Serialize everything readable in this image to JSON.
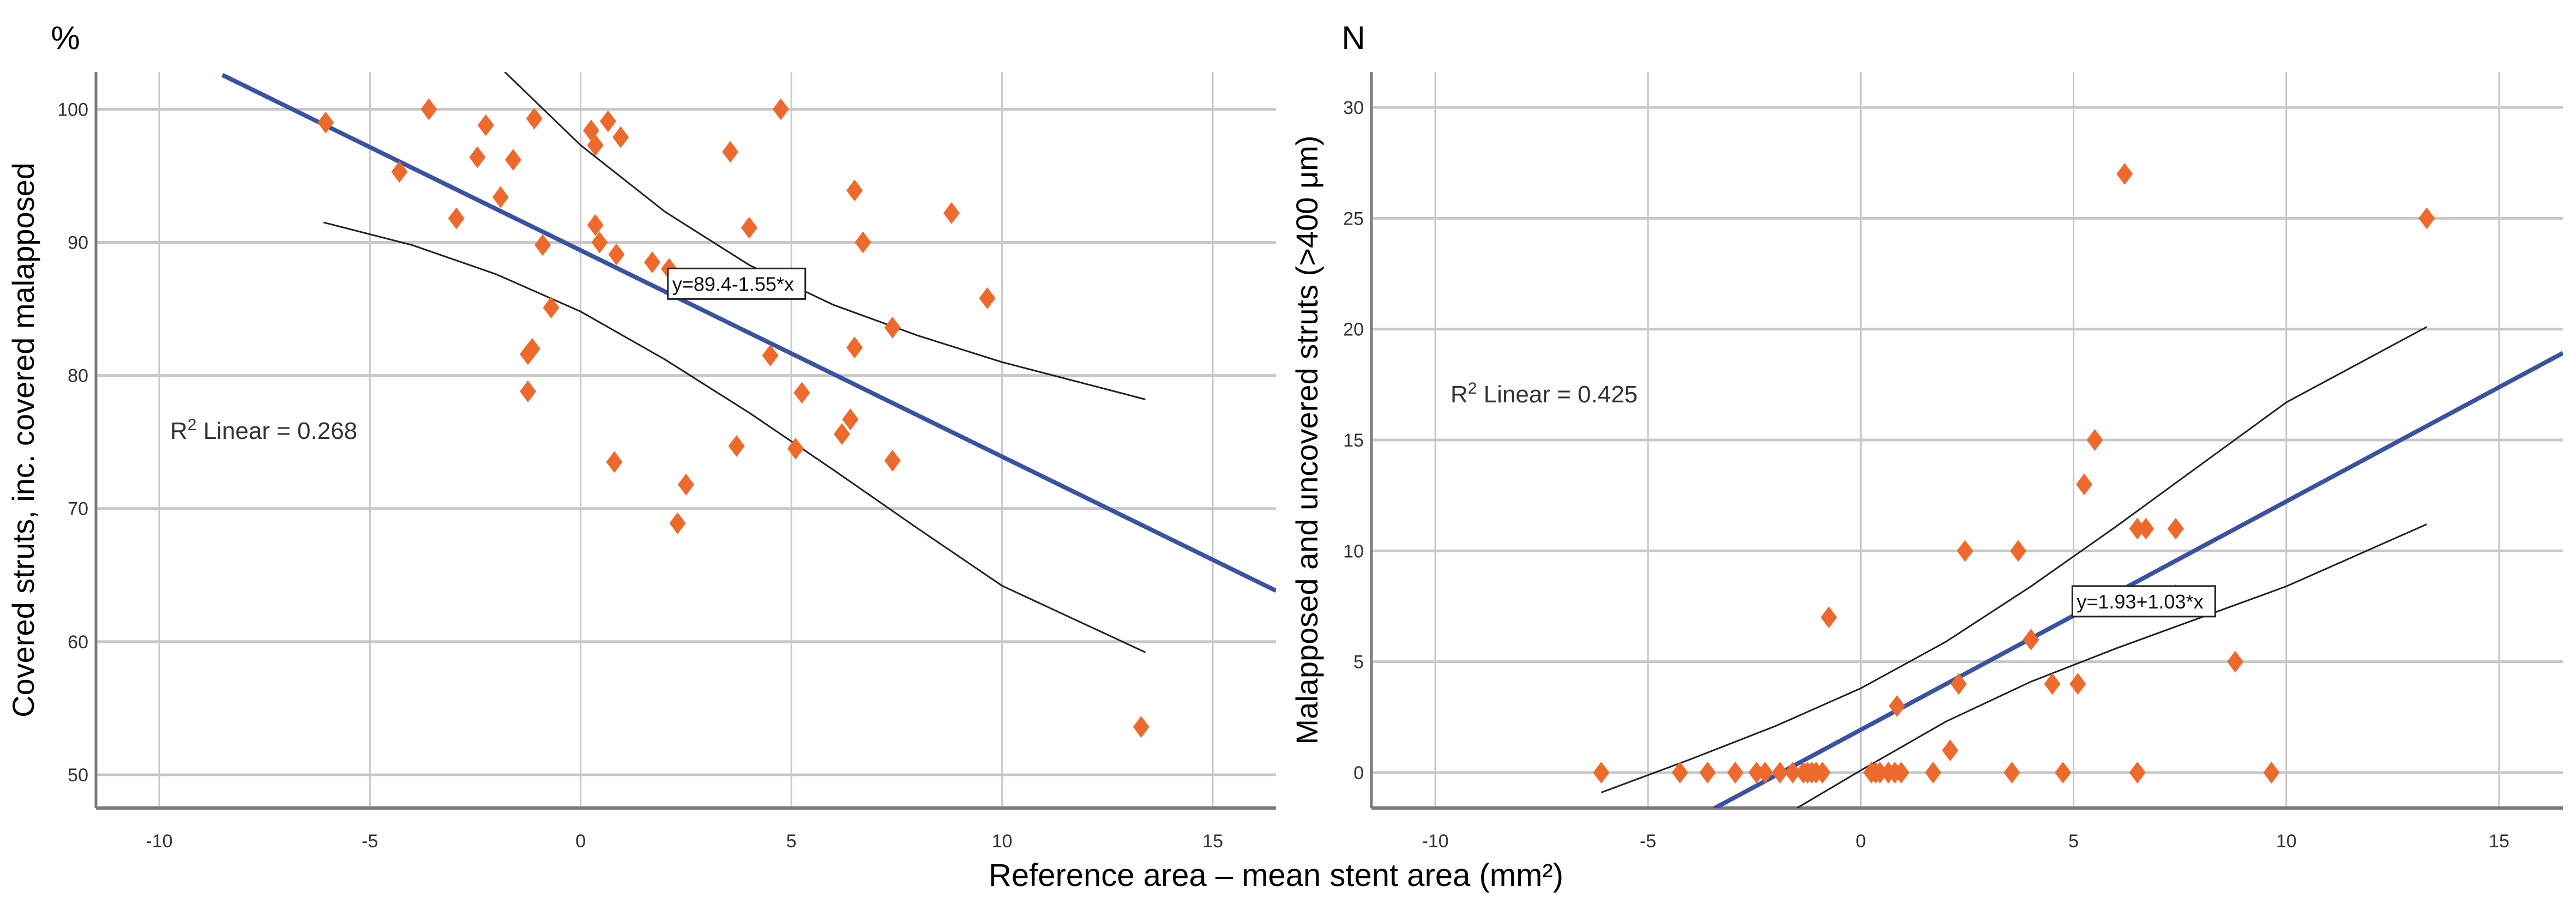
{
  "shared_xlabel": "Reference area – mean stent area (mm²)",
  "colors": {
    "point": "#ED6A2C",
    "fit": "#3A52A4",
    "ci": "#222222",
    "grid": "#C8C8C8",
    "axis": "#7A7A7A"
  },
  "chart_data": [
    {
      "type": "scatter",
      "id": "left",
      "unit_label": "%",
      "ylabel": "Covered struts, inc. covered malapposed",
      "xlabel": "Reference area – mean stent area (mm²)",
      "xlim": [
        -11.5,
        16.5
      ],
      "ylim": [
        47.5,
        102.8
      ],
      "xticks": [
        -10,
        -5,
        0,
        5,
        10,
        15
      ],
      "yticks": [
        50,
        60,
        70,
        80,
        90,
        100
      ],
      "grid": true,
      "r2_label": "R² Linear = 0.268",
      "r2_base": "R",
      "r2_sup": "2",
      "r2_rest": " Linear = 0.268",
      "equation": "y=89.4-1.55*x",
      "fit": {
        "intercept": 89.4,
        "slope": -1.55,
        "x_range": [
          -8.5,
          16.5
        ]
      },
      "ci_upper": [
        [
          -1.8,
          102.8
        ],
        [
          0,
          97.3
        ],
        [
          2,
          92.3
        ],
        [
          4,
          88.3
        ],
        [
          6,
          85.3
        ],
        [
          8,
          83.0
        ],
        [
          10,
          81.0
        ],
        [
          13.4,
          78.2
        ]
      ],
      "ci_lower": [
        [
          -6.1,
          91.5
        ],
        [
          -4,
          89.8
        ],
        [
          -2,
          87.6
        ],
        [
          0,
          84.8
        ],
        [
          2,
          81.2
        ],
        [
          4,
          77.2
        ],
        [
          6,
          72.9
        ],
        [
          8,
          68.5
        ],
        [
          10,
          64.2
        ],
        [
          13.4,
          59.2
        ]
      ],
      "points": [
        [
          -6.05,
          99.0
        ],
        [
          -4.3,
          95.3
        ],
        [
          -3.6,
          100.0
        ],
        [
          -2.95,
          91.8
        ],
        [
          -2.45,
          96.4
        ],
        [
          -2.25,
          98.8
        ],
        [
          -1.9,
          93.4
        ],
        [
          -1.6,
          96.2
        ],
        [
          -1.25,
          81.6
        ],
        [
          -1.15,
          82.0
        ],
        [
          -1.25,
          78.8
        ],
        [
          -1.1,
          99.3
        ],
        [
          -0.9,
          89.8
        ],
        [
          -0.7,
          85.1
        ],
        [
          0.25,
          98.4
        ],
        [
          0.35,
          97.3
        ],
        [
          0.35,
          91.3
        ],
        [
          0.45,
          90.0
        ],
        [
          0.65,
          99.1
        ],
        [
          0.85,
          89.1
        ],
        [
          0.8,
          73.5
        ],
        [
          0.95,
          97.9
        ],
        [
          1.7,
          88.5
        ],
        [
          2.1,
          88.0
        ],
        [
          2.3,
          68.9
        ],
        [
          2.5,
          71.8
        ],
        [
          3.55,
          96.8
        ],
        [
          3.7,
          74.7
        ],
        [
          4.0,
          91.1
        ],
        [
          4.5,
          81.5
        ],
        [
          4.75,
          100.0
        ],
        [
          5.1,
          74.5
        ],
        [
          5.25,
          78.7
        ],
        [
          6.2,
          75.6
        ],
        [
          6.4,
          76.7
        ],
        [
          6.5,
          93.9
        ],
        [
          6.5,
          82.1
        ],
        [
          6.7,
          90.0
        ],
        [
          7.4,
          83.6
        ],
        [
          7.4,
          73.6
        ],
        [
          8.8,
          92.2
        ],
        [
          9.65,
          85.8
        ],
        [
          13.3,
          53.6
        ]
      ]
    },
    {
      "type": "scatter",
      "id": "right",
      "unit_label": "N",
      "ylabel": "Malapposed and uncovered struts (>400 μm)",
      "xlabel": "Reference area – mean stent area (mm²)",
      "xlim": [
        -11.5,
        16.5
      ],
      "ylim": [
        -1.6,
        31.6
      ],
      "xticks": [
        -10,
        -5,
        0,
        5,
        10,
        15
      ],
      "yticks": [
        0,
        5,
        10,
        15,
        20,
        25,
        30
      ],
      "grid": true,
      "r2_base": "R",
      "r2_sup": "2",
      "r2_rest": " Linear = 0.425",
      "r2_label": "R² Linear = 0.425",
      "equation": "y=1.93+1.03*x",
      "fit": {
        "intercept": 1.93,
        "slope": 1.03,
        "x_range": [
          -3.45,
          16.5
        ]
      },
      "ci_upper": [
        [
          -6.1,
          -0.9
        ],
        [
          -4,
          0.6
        ],
        [
          -2,
          2.1
        ],
        [
          0,
          3.8
        ],
        [
          2,
          5.9
        ],
        [
          4,
          8.4
        ],
        [
          6,
          11.1
        ],
        [
          8,
          13.9
        ],
        [
          10,
          16.7
        ],
        [
          13.3,
          20.1
        ]
      ],
      "ci_lower": [
        [
          -1.5,
          -1.6
        ],
        [
          0,
          0.1
        ],
        [
          2,
          2.3
        ],
        [
          4,
          4.1
        ],
        [
          6,
          5.6
        ],
        [
          8,
          7.0
        ],
        [
          10,
          8.4
        ],
        [
          13.3,
          11.2
        ]
      ],
      "points": [
        [
          -6.1,
          0
        ],
        [
          -4.25,
          0
        ],
        [
          -3.6,
          0
        ],
        [
          -2.95,
          0
        ],
        [
          -2.45,
          0
        ],
        [
          -2.25,
          0
        ],
        [
          -1.9,
          0
        ],
        [
          -1.6,
          0
        ],
        [
          -1.35,
          0
        ],
        [
          -1.25,
          0
        ],
        [
          -1.15,
          0
        ],
        [
          -1.05,
          0
        ],
        [
          -0.9,
          0
        ],
        [
          -0.75,
          7
        ],
        [
          0.25,
          0
        ],
        [
          0.35,
          0
        ],
        [
          0.45,
          0
        ],
        [
          0.65,
          0
        ],
        [
          0.8,
          0
        ],
        [
          0.95,
          0
        ],
        [
          0.85,
          3
        ],
        [
          1.7,
          0
        ],
        [
          2.1,
          1
        ],
        [
          2.3,
          4
        ],
        [
          2.45,
          10
        ],
        [
          3.55,
          0
        ],
        [
          3.7,
          10
        ],
        [
          4.0,
          6
        ],
        [
          4.5,
          4
        ],
        [
          4.75,
          0
        ],
        [
          5.1,
          4
        ],
        [
          5.25,
          13
        ],
        [
          5.5,
          15
        ],
        [
          6.2,
          27
        ],
        [
          6.5,
          0
        ],
        [
          6.5,
          11
        ],
        [
          6.7,
          11
        ],
        [
          7.4,
          11
        ],
        [
          7.4,
          8
        ],
        [
          8.8,
          5
        ],
        [
          9.65,
          0
        ],
        [
          13.3,
          25
        ]
      ]
    }
  ]
}
